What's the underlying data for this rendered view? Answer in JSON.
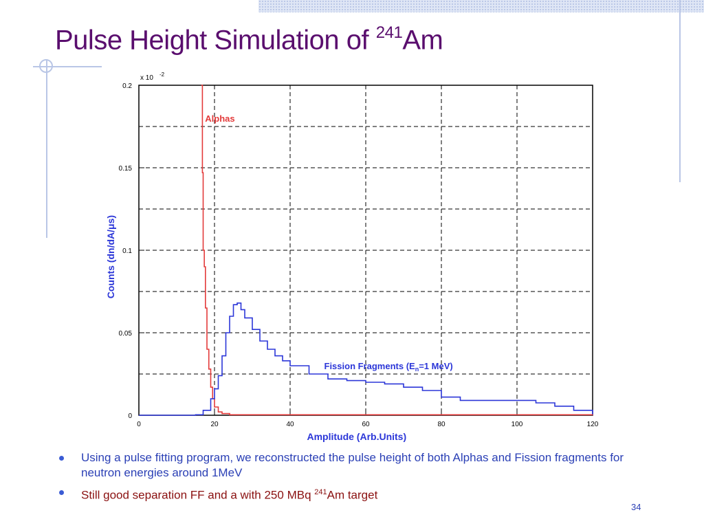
{
  "slide": {
    "title_main": "Pulse Height Simulation of ",
    "title_sup": "241",
    "title_tail": "Am",
    "page_number": "34"
  },
  "bullets": [
    {
      "text": "Using a pulse fitting program, we reconstructed the pulse height of both Alphas and Fission fragments for neutron energies around 1MeV",
      "color": "#2a3fb5"
    },
    {
      "text_pre": "Still good separation FF and a with 250 MBq ",
      "sup": "241",
      "text_post": "Am target",
      "color": "#8a1010"
    }
  ],
  "chart_data": {
    "type": "line",
    "title": "",
    "xlabel": "Amplitude (Arb.Units)",
    "ylabel": "Counts (dn/dA/μs)",
    "y_multiplier": "x 10",
    "y_multiplier_exp": "-2",
    "xlim": [
      0,
      120
    ],
    "ylim": [
      0,
      0.2
    ],
    "x_ticks": [
      0,
      20,
      40,
      60,
      80,
      100,
      120
    ],
    "y_ticks": [
      0,
      0.05,
      0.1,
      0.15,
      0.2
    ],
    "y_tick_labels": [
      "0",
      "0.05",
      "0.1",
      "0.15",
      "0.2"
    ],
    "grid": true,
    "series": [
      {
        "name": "Alphas",
        "color": "#e33a3a",
        "x": [
          16.5,
          16.8,
          17.0,
          17.3,
          17.6,
          18.0,
          18.5,
          19.0,
          19.5,
          20.0,
          21.0,
          22.0,
          24.0,
          120
        ],
        "y": [
          0.2,
          0.147,
          0.1,
          0.09,
          0.065,
          0.04,
          0.028,
          0.017,
          0.01,
          0.005,
          0.002,
          0.001,
          0.0003,
          0
        ]
      },
      {
        "name": "Fission Fragments (En=1 MeV)",
        "color": "#2b36d8",
        "x": [
          0,
          15,
          17,
          19,
          20,
          21,
          22,
          23,
          24,
          25,
          26,
          27,
          28,
          30,
          32,
          34,
          36,
          38,
          40,
          45,
          50,
          55,
          60,
          65,
          70,
          75,
          80,
          85,
          90,
          95,
          100,
          105,
          110,
          115,
          120
        ],
        "y": [
          0,
          0.0003,
          0.003,
          0.01,
          0.016,
          0.024,
          0.036,
          0.05,
          0.06,
          0.067,
          0.068,
          0.064,
          0.059,
          0.052,
          0.045,
          0.04,
          0.036,
          0.033,
          0.03,
          0.025,
          0.022,
          0.021,
          0.02,
          0.019,
          0.017,
          0.015,
          0.011,
          0.009,
          0.009,
          0.009,
          0.009,
          0.0075,
          0.0055,
          0.003,
          0.0005
        ]
      }
    ],
    "annotations": [
      {
        "text": "Alphas",
        "color": "#e33a3a",
        "x": 17.5,
        "y": 0.178
      },
      {
        "text": "Fission Fragments (E",
        "sub": "n",
        "tail": "=1 MeV)",
        "color": "#2b36d8",
        "x": 49,
        "y": 0.028
      }
    ]
  }
}
